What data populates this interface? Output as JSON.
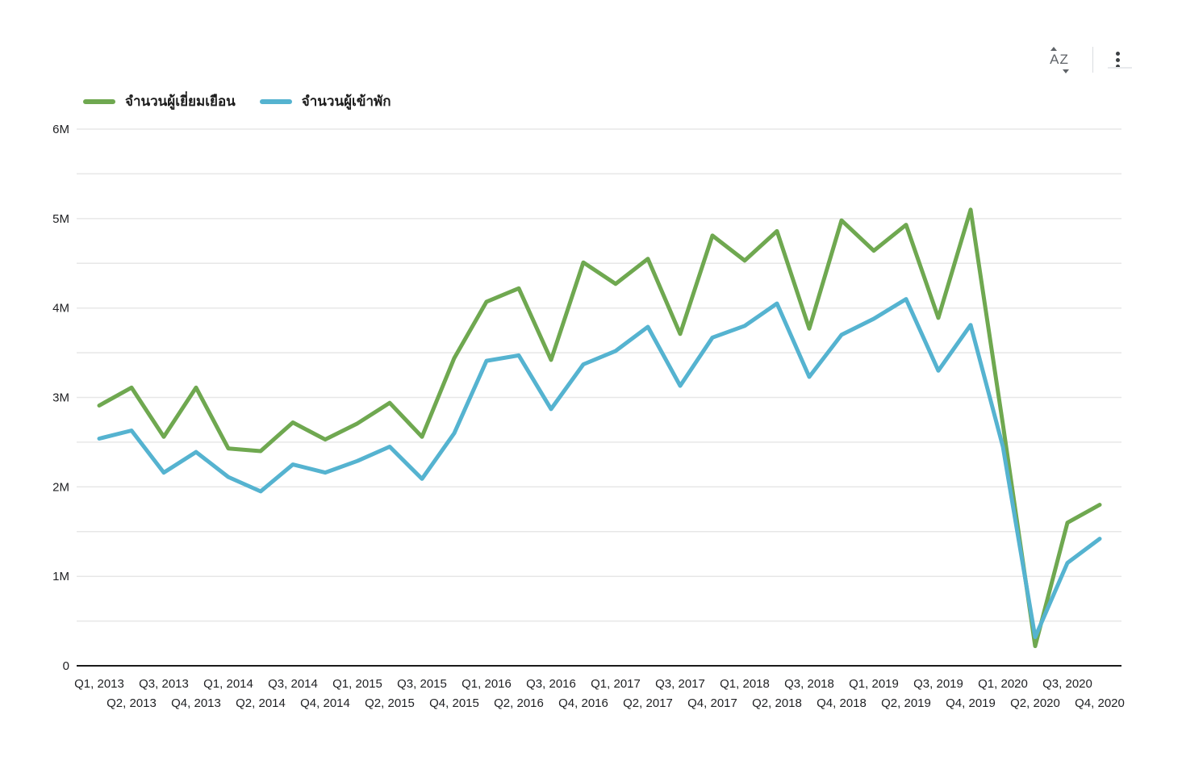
{
  "toolbar": {
    "sort_icon_label": "AZ",
    "icons": [
      "sort-az-icon",
      "more-options-icon"
    ]
  },
  "legend": [
    {
      "label": "จำนวนผู้เยี่ยมเยือน",
      "color": "#6fa850"
    },
    {
      "label": "จำนวนผู้เข้าพัก",
      "color": "#55b3d0"
    }
  ],
  "chart_data": {
    "type": "line",
    "unit": "millions",
    "categories": [
      "Q1, 2013",
      "Q2, 2013",
      "Q3, 2013",
      "Q4, 2013",
      "Q1, 2014",
      "Q2, 2014",
      "Q3, 2014",
      "Q4, 2014",
      "Q1, 2015",
      "Q2, 2015",
      "Q3, 2015",
      "Q4, 2015",
      "Q1, 2016",
      "Q2, 2016",
      "Q3, 2016",
      "Q4, 2016",
      "Q1, 2017",
      "Q2, 2017",
      "Q3, 2017",
      "Q4, 2017",
      "Q1, 2018",
      "Q2, 2018",
      "Q3, 2018",
      "Q4, 2018",
      "Q1, 2019",
      "Q2, 2019",
      "Q3, 2019",
      "Q4, 2019",
      "Q1, 2020",
      "Q2, 2020",
      "Q3, 2020",
      "Q4, 2020"
    ],
    "series": [
      {
        "name": "จำนวนผู้เยี่ยมเยือน",
        "color": "#6fa850",
        "values": [
          2.91,
          3.11,
          2.56,
          3.11,
          2.43,
          2.4,
          2.72,
          2.53,
          2.71,
          2.94,
          2.56,
          3.44,
          4.07,
          4.22,
          3.42,
          4.51,
          4.27,
          4.55,
          3.71,
          4.81,
          4.53,
          4.86,
          3.77,
          4.98,
          4.64,
          4.93,
          3.89,
          5.1,
          2.7,
          0.22,
          1.6,
          1.8
        ]
      },
      {
        "name": "จำนวนผู้เข้าพัก",
        "color": "#55b3d0",
        "values": [
          2.54,
          2.63,
          2.16,
          2.39,
          2.11,
          1.95,
          2.25,
          2.16,
          2.29,
          2.45,
          2.09,
          2.6,
          3.41,
          3.47,
          2.87,
          3.37,
          3.52,
          3.79,
          3.13,
          3.67,
          3.8,
          4.05,
          3.23,
          3.7,
          3.88,
          4.1,
          3.3,
          3.81,
          2.45,
          0.32,
          1.15,
          1.42
        ]
      }
    ],
    "ylim": [
      0,
      6
    ],
    "y_tick_labels": [
      "0",
      "1M",
      "2M",
      "3M",
      "4M",
      "5M",
      "6M"
    ],
    "grid": {
      "horizontal": true,
      "minor_step": 0.5,
      "major_step": 1
    },
    "legend_position": "top-left",
    "x_labels_staggered": true
  }
}
